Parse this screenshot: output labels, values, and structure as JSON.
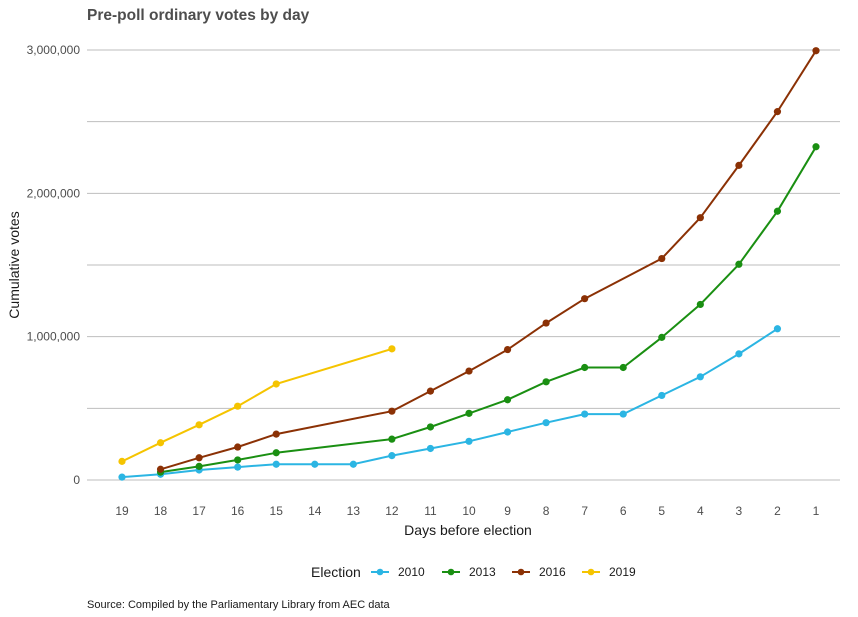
{
  "chart_data": {
    "type": "line",
    "title": "Pre-poll ordinary votes by day",
    "xlabel": "Days before election",
    "ylabel": "Cumulative votes",
    "caption": "Source: Compiled by the Parliamentary Library from AEC data",
    "x": [
      19,
      18,
      17,
      16,
      15,
      14,
      13,
      12,
      11,
      10,
      9,
      8,
      7,
      6,
      5,
      4,
      3,
      2,
      1
    ],
    "x_tick_labels": [
      "19",
      "18",
      "17",
      "16",
      "15",
      "14",
      "13",
      "12",
      "11",
      "10",
      "9",
      "8",
      "7",
      "6",
      "5",
      "4",
      "3",
      "2",
      "1"
    ],
    "ylim": [
      0,
      3000000
    ],
    "y_ticks": [
      0,
      1000000,
      2000000,
      3000000
    ],
    "y_tick_labels": [
      "0",
      "1,000,000",
      "2,000,000",
      "3,000,000"
    ],
    "y_minor_gridlines": [
      500000,
      1500000,
      2500000
    ],
    "grid": true,
    "legend": {
      "title": "Election",
      "position": "bottom"
    },
    "series": [
      {
        "name": "2010",
        "color": "#2bb5e3",
        "points": [
          [
            19,
            20000
          ],
          [
            18,
            40000
          ],
          [
            17,
            70000
          ],
          [
            16,
            90000
          ],
          [
            15,
            110000
          ],
          [
            14,
            110000
          ],
          [
            13,
            110000
          ],
          [
            12,
            170000
          ],
          [
            11,
            220000
          ],
          [
            10,
            270000
          ],
          [
            9,
            335000
          ],
          [
            8,
            400000
          ],
          [
            7,
            460000
          ],
          [
            6,
            460000
          ],
          [
            5,
            590000
          ],
          [
            4,
            720000
          ],
          [
            3,
            880000
          ],
          [
            2,
            1055000
          ]
        ]
      },
      {
        "name": "2013",
        "color": "#1a8f12",
        "points": [
          [
            18,
            55000
          ],
          [
            17,
            95000
          ],
          [
            16,
            140000
          ],
          [
            15,
            190000
          ],
          [
            12,
            285000
          ],
          [
            11,
            370000
          ],
          [
            10,
            465000
          ],
          [
            9,
            560000
          ],
          [
            8,
            685000
          ],
          [
            7,
            785000
          ],
          [
            6,
            785000
          ],
          [
            5,
            995000
          ],
          [
            4,
            1225000
          ],
          [
            3,
            1505000
          ],
          [
            2,
            1875000
          ],
          [
            1,
            2325000
          ]
        ]
      },
      {
        "name": "2016",
        "color": "#8b3105",
        "points": [
          [
            18,
            75000
          ],
          [
            17,
            155000
          ],
          [
            16,
            230000
          ],
          [
            15,
            320000
          ],
          [
            12,
            480000
          ],
          [
            11,
            620000
          ],
          [
            10,
            760000
          ],
          [
            9,
            910000
          ],
          [
            8,
            1095000
          ],
          [
            7,
            1265000
          ],
          [
            5,
            1545000
          ],
          [
            4,
            1830000
          ],
          [
            3,
            2195000
          ],
          [
            2,
            2570000
          ],
          [
            1,
            2995000
          ]
        ]
      },
      {
        "name": "2019",
        "color": "#f5c400",
        "points": [
          [
            19,
            130000
          ],
          [
            18,
            260000
          ],
          [
            17,
            385000
          ],
          [
            16,
            515000
          ],
          [
            15,
            670000
          ],
          [
            12,
            915000
          ]
        ]
      }
    ]
  }
}
